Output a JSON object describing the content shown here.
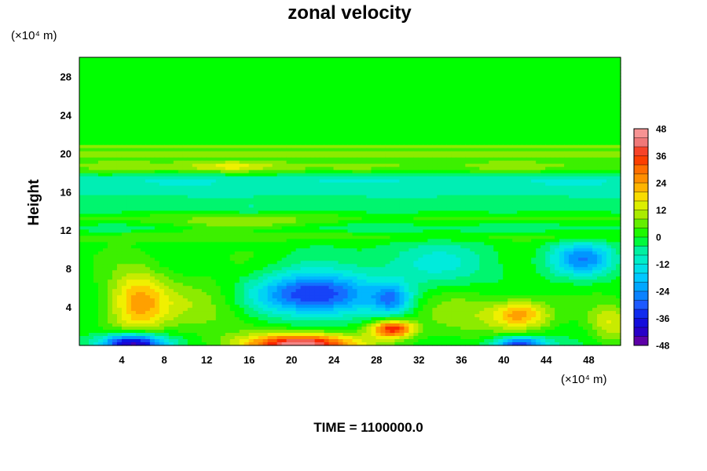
{
  "chart_data": {
    "type": "heatmap",
    "title": "zonal velocity",
    "ylabel": "Height",
    "xlabel": "",
    "x_unit": "(×10⁴ m)",
    "y_unit": "(×10⁴ m)",
    "footer": "TIME = 1100000.0",
    "xlim": [
      0,
      51
    ],
    "ylim": [
      0,
      30
    ],
    "x_ticks": [
      "4",
      "8",
      "12",
      "16",
      "20",
      "24",
      "28",
      "32",
      "36",
      "40",
      "44",
      "48"
    ],
    "x_tick_values": [
      4,
      8,
      12,
      16,
      20,
      24,
      28,
      32,
      36,
      40,
      44,
      48
    ],
    "y_ticks": [
      "4",
      "8",
      "12",
      "16",
      "20",
      "24",
      "28"
    ],
    "y_tick_values": [
      4,
      8,
      12,
      16,
      20,
      24,
      28
    ],
    "colorbar": {
      "min": -48,
      "max": 48,
      "step": 4,
      "tick_labels": [
        "48",
        "36",
        "24",
        "12",
        "0",
        "-12",
        "-24",
        "-36",
        "-48"
      ],
      "tick_values": [
        48,
        36,
        24,
        12,
        0,
        -12,
        -24,
        -36,
        -48
      ]
    },
    "grid": false,
    "field": {
      "background_value": 0,
      "bands": [
        {
          "y_center": 20.6,
          "width": 0.25,
          "value": 10
        },
        {
          "y_center": 19.9,
          "width": 0.25,
          "value": 10
        },
        {
          "y_center": 18.6,
          "width": 0.9,
          "value": 7
        },
        {
          "y_center": 17.3,
          "width": 0.8,
          "value": -9
        },
        {
          "y_center": 16.0,
          "width": 0.9,
          "value": -7
        },
        {
          "y_center": 14.3,
          "width": 0.8,
          "value": -5
        },
        {
          "y_center": 13.2,
          "width": 0.8,
          "value": 4
        },
        {
          "y_center": 12.2,
          "width": 0.7,
          "value": -5
        },
        {
          "y_center": 11.4,
          "width": 0.6,
          "value": 5
        }
      ],
      "features": [
        {
          "x": 5.5,
          "y": 4.5,
          "sx": 2.8,
          "sy": 3.2,
          "value": 24
        },
        {
          "x": 5.0,
          "y": 0.2,
          "sx": 3.0,
          "sy": 1.0,
          "value": -48
        },
        {
          "x": 22.0,
          "y": 5.3,
          "sx": 5.5,
          "sy": 2.2,
          "value": -36
        },
        {
          "x": 21.0,
          "y": 0.1,
          "sx": 5.0,
          "sy": 1.1,
          "value": 48
        },
        {
          "x": 29.5,
          "y": 1.7,
          "sx": 2.0,
          "sy": 0.9,
          "value": 36
        },
        {
          "x": 29.5,
          "y": 4.8,
          "sx": 1.8,
          "sy": 1.6,
          "value": -20
        },
        {
          "x": 41.5,
          "y": 3.2,
          "sx": 2.8,
          "sy": 1.5,
          "value": 24
        },
        {
          "x": 41.5,
          "y": 0.1,
          "sx": 2.5,
          "sy": 0.8,
          "value": -36
        },
        {
          "x": 47.5,
          "y": 9.0,
          "sx": 3.0,
          "sy": 1.8,
          "value": -24
        },
        {
          "x": 50.0,
          "y": 2.4,
          "sx": 2.0,
          "sy": 2.0,
          "value": 14
        },
        {
          "x": 15.0,
          "y": 12.6,
          "sx": 6.0,
          "sy": 0.8,
          "value": 10
        },
        {
          "x": 33.0,
          "y": 8.5,
          "sx": 7.0,
          "sy": 2.5,
          "value": -10
        },
        {
          "x": 12.0,
          "y": 4.0,
          "sx": 5.0,
          "sy": 3.0,
          "value": 8
        },
        {
          "x": 36.0,
          "y": 3.0,
          "sx": 4.0,
          "sy": 2.5,
          "value": 8
        },
        {
          "x": 14.0,
          "y": 18.6,
          "sx": 4.0,
          "sy": 0.6,
          "value": 10
        }
      ]
    }
  }
}
